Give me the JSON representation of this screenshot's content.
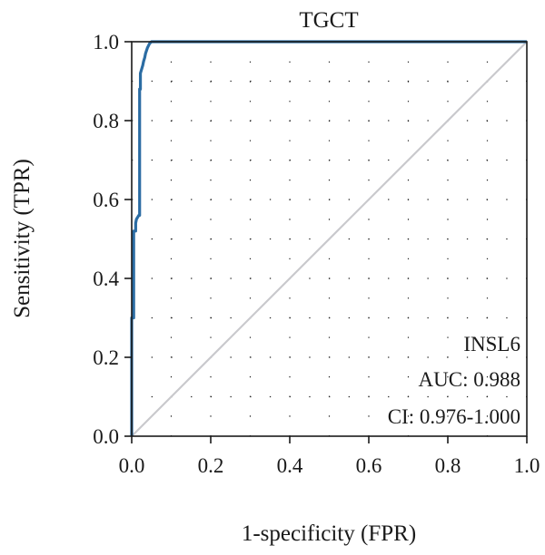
{
  "chart_data": {
    "type": "line",
    "title": "TGCT",
    "xlabel": "1-specificity (FPR)",
    "ylabel": "Sensitivity (TPR)",
    "xlim": [
      0,
      1
    ],
    "ylim": [
      0,
      1
    ],
    "xticks": [
      "0.0",
      "0.2",
      "0.4",
      "0.6",
      "0.8",
      "1.0"
    ],
    "yticks": [
      "0.0",
      "0.2",
      "0.4",
      "0.6",
      "0.8",
      "1.0"
    ],
    "grid": "dotted",
    "series": [
      {
        "name": "INSL6",
        "color": "#2b6ca3",
        "x": [
          0.0,
          0.0,
          0.005,
          0.005,
          0.01,
          0.01,
          0.012,
          0.015,
          0.018,
          0.02,
          0.02,
          0.022,
          0.022,
          0.025,
          0.028,
          0.03,
          0.033,
          0.035,
          0.04,
          0.045,
          0.05,
          1.0
        ],
        "y": [
          0.0,
          0.3,
          0.3,
          0.52,
          0.52,
          0.54,
          0.55,
          0.555,
          0.56,
          0.56,
          0.88,
          0.88,
          0.92,
          0.93,
          0.94,
          0.95,
          0.96,
          0.97,
          0.985,
          0.995,
          1.0,
          1.0
        ]
      },
      {
        "name": "",
        "color": "#c9c9cd",
        "x": [
          0,
          1
        ],
        "y": [
          0,
          1
        ]
      }
    ],
    "annotations": [
      "INSL6",
      "AUC: 0.988",
      "CI: 0.976-1.000"
    ]
  }
}
